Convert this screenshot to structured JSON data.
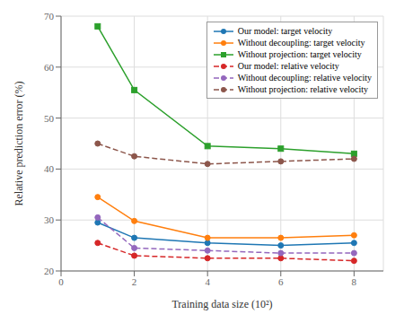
{
  "chart_data": {
    "type": "line",
    "xlabel": "Training data size (10²)",
    "ylabel": "Relative prediction error (%)",
    "x": [
      1,
      2,
      4,
      6,
      8
    ],
    "series": [
      {
        "name": "Our model: target velocity",
        "color": "#1f77b4",
        "line_style": "solid",
        "marker": "circle",
        "values": [
          29.5,
          26.5,
          25.5,
          25.0,
          25.5
        ]
      },
      {
        "name": "Without decoupling: target velocity",
        "color": "#ff7f0e",
        "line_style": "solid",
        "marker": "circle",
        "values": [
          34.5,
          29.8,
          26.5,
          26.5,
          27.0
        ]
      },
      {
        "name": "Without projection: target velocity",
        "color": "#2ca02c",
        "line_style": "solid",
        "marker": "square",
        "values": [
          68.0,
          55.5,
          44.5,
          44.0,
          43.0
        ]
      },
      {
        "name": "Our model: relative velocity",
        "color": "#d62728",
        "line_style": "dashed",
        "marker": "circle",
        "values": [
          25.5,
          23.0,
          22.5,
          22.5,
          22.0
        ]
      },
      {
        "name": "Without decoupling: relative velocity",
        "color": "#9467bd",
        "line_style": "dashed",
        "marker": "circle",
        "values": [
          30.5,
          24.5,
          24.0,
          23.5,
          23.5
        ]
      },
      {
        "name": "Without projection: relative velocity",
        "color": "#8c564b",
        "line_style": "dashed",
        "marker": "circle",
        "values": [
          45.0,
          42.5,
          41.0,
          41.5,
          42.0
        ]
      }
    ],
    "xlim": [
      0,
      8.8
    ],
    "ylim": [
      20,
      70
    ],
    "xticks": [
      0,
      2,
      4,
      6,
      8
    ],
    "yticks": [
      20,
      30,
      40,
      50,
      60,
      70
    ],
    "grid": true,
    "legend": "upper right"
  }
}
